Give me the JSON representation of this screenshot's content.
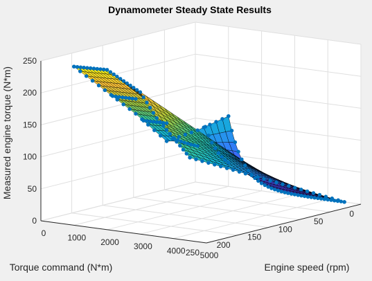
{
  "chart_data": {
    "type": "surface3d",
    "title": "Dynamometer Steady State Results",
    "xlabel": "Engine speed (rpm)",
    "ylabel": "Torque command (N*m)",
    "zlabel": "Measured engine torque (N*m)",
    "xlim": [
      0,
      5000
    ],
    "ylim": [
      0,
      250
    ],
    "zlim": [
      0,
      250
    ],
    "xticks": [
      "0",
      "1000",
      "2000",
      "3000",
      "4000",
      "5000"
    ],
    "yticks": [
      "0",
      "50",
      "100",
      "150",
      "200",
      "250"
    ],
    "zticks": [
      "0",
      "50",
      "100",
      "150",
      "200",
      "250"
    ],
    "grid": true,
    "colormap": "parula",
    "marker_color": "#0072bd",
    "surface_model": {
      "speed_range_rpm": [
        1000,
        4500
      ],
      "command_range_nm": [
        0,
        250
      ],
      "torque_at_max_command_nm": [
        {
          "speed": 1000,
          "torque": 248
        },
        {
          "speed": 2000,
          "torque": 250
        },
        {
          "speed": 2600,
          "torque": 233
        },
        {
          "speed": 3000,
          "torque": 222
        },
        {
          "speed": 3500,
          "torque": 185
        },
        {
          "speed": 4500,
          "torque": 130
        }
      ],
      "low_speed_edge_nm": [
        {
          "command": 0,
          "torque": 110
        },
        {
          "command": 50,
          "torque": 100
        },
        {
          "command": 100,
          "torque": 95
        },
        {
          "command": 150,
          "torque": 150
        },
        {
          "command": 250,
          "torque": 248
        }
      ],
      "min_torque_nm": 0
    }
  }
}
